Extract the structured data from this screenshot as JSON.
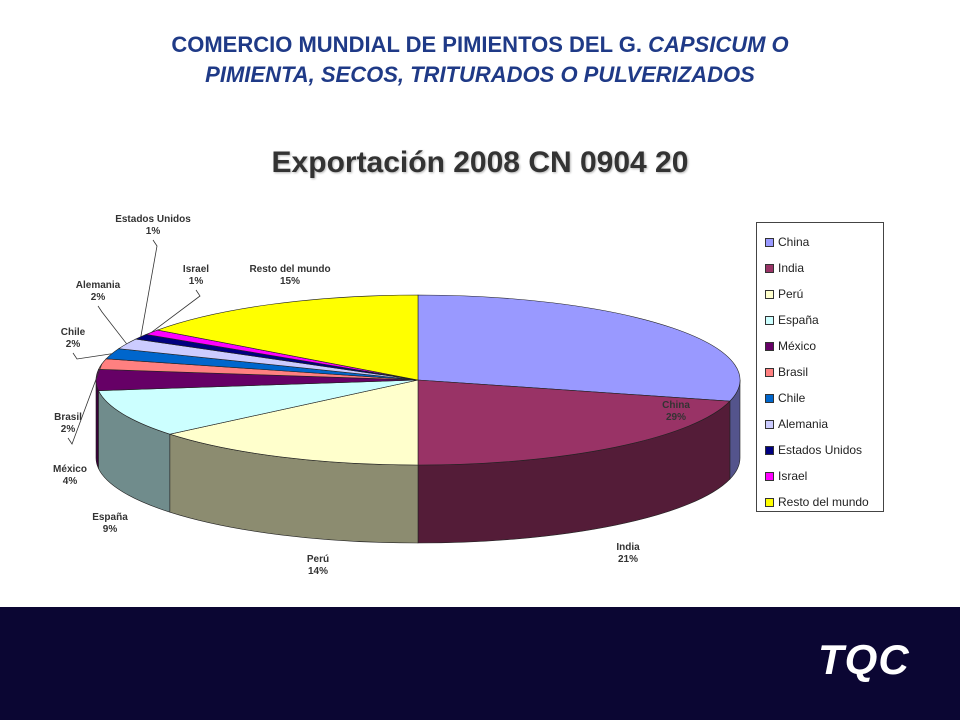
{
  "slide": {
    "title_line1_plain": "COMERCIO MUNDIAL DE PIMIENTOS DEL G. ",
    "title_line1_italic": "CAPSICUM O",
    "title_line2_italic": "PIMIENTA, SECOS, TRITURADOS O PULVERIZADOS"
  },
  "footer": {
    "logo_text": "TQC",
    "logo_bg": "#0b0633"
  },
  "chart_data": {
    "type": "pie",
    "title": "Exportación 2008 CN 0904 20",
    "legend_position": "right",
    "slices": [
      {
        "label": "China",
        "value": 29,
        "pct_label": "29%",
        "color": "#9999ff"
      },
      {
        "label": "India",
        "value": 21,
        "pct_label": "21%",
        "color": "#993366"
      },
      {
        "label": "Perú",
        "value": 14,
        "pct_label": "14%",
        "color": "#ffffcc"
      },
      {
        "label": "España",
        "value": 9,
        "pct_label": "9%",
        "color": "#ccffff"
      },
      {
        "label": "México",
        "value": 4,
        "pct_label": "4%",
        "color": "#660066"
      },
      {
        "label": "Brasil",
        "value": 2,
        "pct_label": "2%",
        "color": "#ff8080"
      },
      {
        "label": "Chile",
        "value": 2,
        "pct_label": "2%",
        "color": "#0066cc"
      },
      {
        "label": "Alemania",
        "value": 2,
        "pct_label": "2%",
        "color": "#ccccff"
      },
      {
        "label": "Estados Unidos",
        "value": 1,
        "pct_label": "1%",
        "color": "#000080"
      },
      {
        "label": "Israel",
        "value": 1,
        "pct_label": "1%",
        "color": "#ff00ff"
      },
      {
        "label": "Resto del mundo",
        "value": 15,
        "pct_label": "15%",
        "color": "#ffff00"
      }
    ]
  }
}
